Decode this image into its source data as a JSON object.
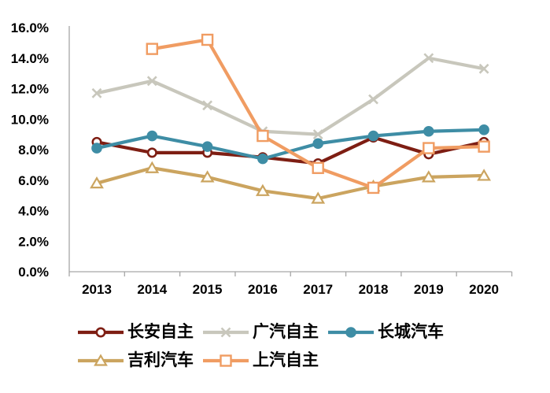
{
  "chart_data": {
    "type": "line",
    "title": "",
    "xlabel": "",
    "ylabel": "",
    "categories": [
      "2013",
      "2014",
      "2015",
      "2016",
      "2017",
      "2018",
      "2019",
      "2020"
    ],
    "series": [
      {
        "name": "长安自主",
        "color": "#7E1E13",
        "marker": "open-circle",
        "values": [
          8.5,
          7.8,
          7.8,
          7.5,
          7.1,
          8.8,
          7.7,
          8.5
        ]
      },
      {
        "name": "广汽自主",
        "color": "#C8C7BC",
        "marker": "x",
        "values": [
          11.7,
          12.5,
          10.9,
          9.2,
          9.0,
          11.3,
          14.0,
          13.3
        ]
      },
      {
        "name": "长城汽车",
        "color": "#3E8DA5",
        "marker": "filled-circle",
        "values": [
          8.1,
          8.9,
          8.2,
          7.4,
          8.4,
          8.9,
          9.2,
          9.3
        ]
      },
      {
        "name": "吉利汽车",
        "color": "#CBA45F",
        "marker": "open-triangle",
        "values": [
          5.8,
          6.8,
          6.2,
          5.3,
          4.8,
          5.6,
          6.2,
          6.3
        ]
      },
      {
        "name": "上汽自主",
        "color": "#F09C62",
        "marker": "open-square",
        "values": [
          null,
          14.6,
          15.2,
          8.9,
          6.8,
          5.5,
          8.1,
          8.2
        ]
      }
    ],
    "ylim": [
      0,
      16
    ],
    "ytick_step": 2,
    "y_tick_labels": [
      "0.0%",
      "2.0%",
      "4.0%",
      "6.0%",
      "8.0%",
      "10.0%",
      "12.0%",
      "14.0%",
      "16.0%"
    ],
    "grid": false,
    "axis_color": "#A6A6A6",
    "text_color": "#000000",
    "legend_position": "bottom",
    "legend_rows": [
      [
        "长安自主",
        "广汽自主",
        "长城汽车"
      ],
      [
        "吉利汽车",
        "上汽自主"
      ]
    ]
  }
}
